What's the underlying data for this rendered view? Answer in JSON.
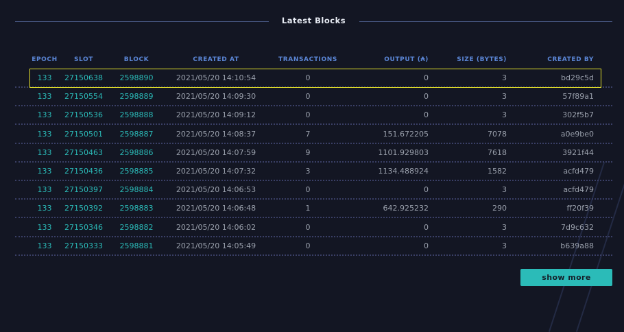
{
  "title": "Latest Blocks",
  "columns": [
    "EPOCH",
    "SLOT",
    "BLOCK",
    "CREATED AT",
    "TRANSACTIONS",
    "OUTPUT (₳)",
    "SIZE (BYTES)",
    "CREATED BY"
  ],
  "rows": [
    [
      "133",
      "27150638",
      "2598890",
      "2021/05/20 14:10:54",
      "0",
      "0",
      "3",
      "bd29c5d"
    ],
    [
      "133",
      "27150554",
      "2598889",
      "2021/05/20 14:09:30",
      "0",
      "0",
      "3",
      "57f89a1"
    ],
    [
      "133",
      "27150536",
      "2598888",
      "2021/05/20 14:09:12",
      "0",
      "0",
      "3",
      "302f5b7"
    ],
    [
      "133",
      "27150501",
      "2598887",
      "2021/05/20 14:08:37",
      "7",
      "151.672205",
      "7078",
      "a0e9be0"
    ],
    [
      "133",
      "27150463",
      "2598886",
      "2021/05/20 14:07:59",
      "9",
      "1101.929803",
      "7618",
      "3921f44"
    ],
    [
      "133",
      "27150436",
      "2598885",
      "2021/05/20 14:07:32",
      "3",
      "1134.488924",
      "1582",
      "acfd479"
    ],
    [
      "133",
      "27150397",
      "2598884",
      "2021/05/20 14:06:53",
      "0",
      "0",
      "3",
      "acfd479"
    ],
    [
      "133",
      "27150392",
      "2598883",
      "2021/05/20 14:06:48",
      "1",
      "642.925232",
      "290",
      "ff20f39"
    ],
    [
      "133",
      "27150346",
      "2598882",
      "2021/05/20 14:06:02",
      "0",
      "0",
      "3",
      "7d9c632"
    ],
    [
      "133",
      "27150333",
      "2598881",
      "2021/05/20 14:05:49",
      "0",
      "0",
      "3",
      "b639a88"
    ]
  ],
  "show_more_label": "show more",
  "colors": {
    "accent": "#2bbbb8",
    "header": "#5b86d6",
    "highlight": "#e6e22a",
    "background": "#131623"
  }
}
